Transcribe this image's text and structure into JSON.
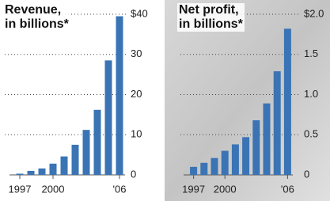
{
  "chart_data": [
    {
      "type": "bar",
      "title": "Revenue,\nin billions*",
      "color": "#3a74b4",
      "categories": [
        "1997",
        null,
        null,
        "2000",
        null,
        null,
        null,
        null,
        null,
        "'06"
      ],
      "values": [
        0.3,
        1.0,
        1.6,
        2.8,
        4.6,
        7.5,
        11.2,
        16.2,
        28.5,
        39.5
      ],
      "ylim": [
        0,
        40
      ],
      "yticks": [
        0,
        10,
        20,
        30,
        {
          "value": 40,
          "label": "$40"
        }
      ],
      "grid": true
    },
    {
      "type": "bar",
      "title": "Net profit,\nin billions*",
      "color": "#3a74b4",
      "categories": [
        "1997",
        null,
        null,
        "2000",
        null,
        null,
        null,
        null,
        null,
        "'06"
      ],
      "values": [
        0.1,
        0.15,
        0.21,
        0.3,
        0.38,
        0.47,
        0.68,
        0.89,
        1.29,
        1.82
      ],
      "ylim": [
        0,
        2
      ],
      "yticks": [
        0,
        0.5,
        {
          "value": 1,
          "label": "1.0"
        },
        1.5,
        {
          "value": 2,
          "label": "$2.0"
        }
      ],
      "grid": true
    }
  ]
}
